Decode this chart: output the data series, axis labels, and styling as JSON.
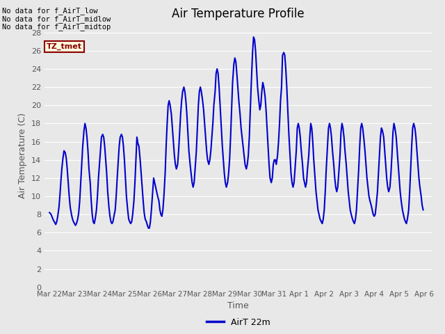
{
  "title": "Air Temperature Profile",
  "xlabel": "Time",
  "ylabel": "Air Temperature (C)",
  "line_color": "#0000CC",
  "line_width": 1.5,
  "bg_color": "#E8E8E8",
  "ylim": [
    0,
    29
  ],
  "yticks": [
    0,
    2,
    4,
    6,
    8,
    10,
    12,
    14,
    16,
    18,
    20,
    22,
    24,
    26,
    28
  ],
  "annotations": [
    "No data for f_AirT_low",
    "No data for f_AirT_midlow",
    "No data for f_AirT_midtop"
  ],
  "legend_label": "AirT 22m",
  "tz_label": "TZ_tmet",
  "data_x_days": [
    0.0,
    0.04,
    0.08,
    0.12,
    0.17,
    0.21,
    0.25,
    0.29,
    0.33,
    0.38,
    0.42,
    0.46,
    0.5,
    0.54,
    0.58,
    0.63,
    0.67,
    0.71,
    0.75,
    0.79,
    0.83,
    0.88,
    0.92,
    0.96,
    1.0,
    1.04,
    1.08,
    1.13,
    1.17,
    1.21,
    1.25,
    1.29,
    1.33,
    1.38,
    1.42,
    1.46,
    1.5,
    1.54,
    1.58,
    1.63,
    1.67,
    1.71,
    1.75,
    1.79,
    1.83,
    1.88,
    1.92,
    1.96,
    2.0,
    2.04,
    2.08,
    2.13,
    2.17,
    2.21,
    2.25,
    2.29,
    2.33,
    2.38,
    2.42,
    2.46,
    2.5,
    2.54,
    2.58,
    2.63,
    2.67,
    2.71,
    2.75,
    2.79,
    2.83,
    2.88,
    2.92,
    2.96,
    3.0,
    3.04,
    3.08,
    3.13,
    3.17,
    3.21,
    3.25,
    3.29,
    3.33,
    3.38,
    3.42,
    3.46,
    3.5,
    3.54,
    3.58,
    3.63,
    3.67,
    3.71,
    3.75,
    3.79,
    3.83,
    3.88,
    3.92,
    3.96,
    4.0,
    4.04,
    4.08,
    4.13,
    4.17,
    4.21,
    4.25,
    4.29,
    4.33,
    4.38,
    4.42,
    4.46,
    4.5,
    4.54,
    4.58,
    4.63,
    4.67,
    4.71,
    4.75,
    4.79,
    4.83,
    4.88,
    4.92,
    4.96,
    5.0,
    5.04,
    5.08,
    5.13,
    5.17,
    5.21,
    5.25,
    5.29,
    5.33,
    5.38,
    5.42,
    5.46,
    5.5,
    5.54,
    5.58,
    5.63,
    5.67,
    5.71,
    5.75,
    5.79,
    5.83,
    5.88,
    5.92,
    5.96,
    6.0,
    6.04,
    6.08,
    6.13,
    6.17,
    6.21,
    6.25,
    6.29,
    6.33,
    6.38,
    6.42,
    6.46,
    6.5,
    6.54,
    6.58,
    6.63,
    6.67,
    6.71,
    6.75,
    6.79,
    6.83,
    6.88,
    6.92,
    6.96,
    7.0,
    7.04,
    7.08,
    7.13,
    7.17,
    7.21,
    7.25,
    7.29,
    7.33,
    7.38,
    7.42,
    7.46,
    7.5,
    7.54,
    7.58,
    7.63,
    7.67,
    7.71,
    7.75,
    7.79,
    7.83,
    7.88,
    7.92,
    7.96,
    8.0,
    8.04,
    8.08,
    8.13,
    8.17,
    8.21,
    8.25,
    8.29,
    8.33,
    8.38,
    8.42,
    8.46,
    8.5,
    8.54,
    8.58,
    8.63,
    8.67,
    8.71,
    8.75,
    8.79,
    8.83,
    8.88,
    8.92,
    8.96,
    9.0,
    9.04,
    9.08,
    9.13,
    9.17,
    9.21,
    9.25,
    9.29,
    9.33,
    9.38,
    9.42,
    9.46,
    9.5,
    9.54,
    9.58,
    9.63,
    9.67,
    9.71,
    9.75,
    9.79,
    9.83,
    9.88,
    9.92,
    9.96,
    10.0,
    10.04,
    10.08,
    10.13,
    10.17,
    10.21,
    10.25,
    10.29,
    10.33,
    10.38,
    10.42,
    10.46,
    10.5,
    10.54,
    10.58,
    10.63,
    10.67,
    10.71,
    10.75,
    10.79,
    10.83,
    10.88,
    10.92,
    10.96,
    11.0,
    11.04,
    11.08,
    11.13,
    11.17,
    11.21,
    11.25,
    11.29,
    11.33,
    11.38,
    11.42,
    11.46,
    11.5,
    11.54,
    11.58,
    11.63,
    11.67,
    11.71,
    11.75,
    11.79,
    11.83,
    11.88,
    11.92,
    11.96,
    12.0,
    12.04,
    12.08,
    12.13,
    12.17,
    12.21,
    12.25,
    12.29,
    12.33,
    12.38,
    12.42,
    12.46,
    12.5,
    12.54,
    12.58,
    12.63,
    12.67,
    12.71,
    12.75,
    12.79,
    12.83,
    12.88,
    12.92,
    12.96,
    13.0,
    13.04,
    13.08,
    13.13,
    13.17,
    13.21,
    13.25,
    13.29,
    13.33,
    13.38,
    13.42,
    13.46,
    13.5,
    13.54,
    13.58,
    13.63,
    13.67,
    13.71,
    13.75,
    13.79,
    13.83,
    13.88,
    13.92,
    13.96,
    14.0,
    14.04,
    14.08,
    14.13,
    14.17,
    14.21,
    14.25,
    14.29,
    14.33,
    14.38,
    14.42,
    14.46,
    14.5,
    14.54,
    14.58,
    14.63,
    14.67,
    14.71,
    14.75,
    14.79,
    14.83,
    14.88,
    14.92,
    14.96
  ],
  "data_y": [
    8.2,
    8.1,
    7.9,
    7.6,
    7.3,
    7.1,
    6.9,
    7.2,
    7.8,
    8.8,
    10.2,
    11.8,
    13.2,
    14.2,
    15.0,
    14.8,
    14.2,
    13.0,
    11.5,
    10.0,
    8.8,
    8.0,
    7.5,
    7.2,
    7.0,
    6.8,
    7.0,
    7.5,
    8.2,
    9.5,
    11.5,
    13.5,
    15.5,
    17.2,
    18.0,
    17.5,
    16.5,
    15.0,
    13.0,
    11.5,
    9.5,
    8.0,
    7.2,
    7.0,
    7.5,
    8.5,
    10.0,
    12.0,
    13.5,
    15.0,
    16.5,
    16.8,
    16.5,
    15.5,
    14.0,
    12.5,
    10.5,
    8.8,
    7.8,
    7.2,
    7.0,
    7.2,
    7.8,
    8.5,
    10.0,
    12.0,
    13.8,
    15.5,
    16.5,
    16.8,
    16.5,
    15.5,
    14.0,
    12.0,
    10.0,
    8.5,
    7.5,
    7.2,
    7.0,
    7.2,
    8.0,
    9.5,
    11.5,
    14.0,
    16.5,
    15.8,
    15.5,
    14.0,
    12.5,
    11.0,
    9.5,
    8.2,
    7.5,
    7.2,
    6.8,
    6.5,
    6.5,
    7.2,
    8.5,
    10.5,
    12.0,
    11.5,
    11.0,
    10.5,
    10.0,
    9.5,
    8.5,
    8.0,
    7.8,
    8.5,
    10.0,
    12.5,
    15.5,
    18.0,
    20.0,
    20.5,
    20.0,
    19.0,
    17.5,
    16.0,
    14.5,
    13.5,
    13.0,
    13.5,
    15.0,
    17.0,
    19.0,
    20.5,
    21.5,
    22.0,
    21.5,
    20.5,
    19.0,
    17.0,
    15.0,
    13.5,
    12.5,
    11.5,
    11.0,
    11.5,
    13.0,
    15.0,
    17.5,
    20.0,
    21.5,
    22.0,
    21.5,
    20.5,
    19.5,
    18.0,
    16.5,
    15.0,
    14.0,
    13.5,
    14.0,
    15.0,
    16.5,
    18.0,
    20.0,
    21.5,
    23.5,
    24.0,
    23.5,
    22.0,
    20.0,
    17.5,
    15.5,
    14.0,
    12.5,
    11.5,
    11.0,
    11.5,
    12.5,
    14.0,
    16.5,
    19.5,
    22.5,
    24.5,
    25.2,
    24.8,
    23.5,
    22.0,
    20.5,
    19.0,
    17.5,
    16.5,
    15.5,
    14.5,
    13.5,
    13.0,
    13.5,
    14.5,
    16.5,
    19.5,
    22.5,
    25.8,
    27.5,
    27.2,
    26.0,
    24.0,
    22.0,
    20.5,
    19.5,
    20.0,
    21.5,
    22.5,
    22.0,
    21.0,
    19.5,
    17.5,
    15.5,
    13.5,
    12.0,
    11.5,
    12.0,
    13.5,
    14.0,
    14.0,
    13.5,
    14.5,
    16.0,
    18.0,
    20.5,
    22.0,
    25.5,
    25.8,
    25.5,
    24.0,
    22.0,
    19.5,
    17.0,
    14.5,
    12.5,
    11.5,
    11.0,
    11.5,
    13.0,
    15.0,
    17.5,
    18.0,
    17.5,
    16.5,
    15.0,
    13.5,
    12.0,
    11.5,
    11.0,
    11.5,
    13.0,
    14.5,
    16.5,
    18.0,
    17.5,
    16.0,
    14.0,
    12.0,
    10.5,
    9.5,
    8.5,
    8.0,
    7.5,
    7.2,
    7.0,
    7.5,
    8.5,
    10.5,
    13.0,
    15.5,
    17.5,
    18.0,
    17.5,
    16.5,
    15.0,
    13.5,
    12.0,
    11.0,
    10.5,
    11.0,
    12.5,
    14.5,
    17.0,
    18.0,
    17.5,
    16.5,
    15.0,
    13.5,
    12.0,
    10.5,
    9.5,
    8.5,
    8.0,
    7.5,
    7.2,
    7.0,
    7.5,
    8.5,
    10.5,
    13.0,
    15.5,
    17.5,
    18.0,
    17.5,
    16.5,
    15.0,
    13.5,
    12.0,
    11.0,
    10.0,
    9.5,
    9.0,
    8.5,
    8.0,
    7.8,
    8.0,
    9.0,
    10.5,
    12.5,
    14.5,
    16.5,
    17.5,
    17.2,
    16.5,
    15.0,
    13.5,
    12.0,
    11.0,
    10.5,
    11.0,
    12.5,
    14.5,
    17.0,
    18.0,
    17.5,
    16.5,
    15.0,
    13.5,
    12.0,
    10.5,
    9.5,
    8.5,
    8.0,
    7.5,
    7.2,
    7.0,
    7.5,
    8.5,
    10.5,
    13.0,
    15.5,
    17.5,
    18.0,
    17.5,
    16.5,
    15.0,
    13.5,
    12.0,
    11.0,
    10.0,
    9.0,
    8.5
  ],
  "x_tick_labels": [
    "Mar 22",
    "Mar 23",
    "Mar 24",
    "Mar 25",
    "Mar 26",
    "Mar 27",
    "Mar 28",
    "Mar 29",
    "Mar 30",
    "Mar 31",
    "Apr 1",
    "Apr 2",
    "Apr 3",
    "Apr 4",
    "Apr 5",
    "Apr 6"
  ],
  "x_tick_positions": [
    0,
    1,
    2,
    3,
    4,
    5,
    6,
    7,
    8,
    9,
    10,
    11,
    12,
    13,
    14,
    15
  ]
}
